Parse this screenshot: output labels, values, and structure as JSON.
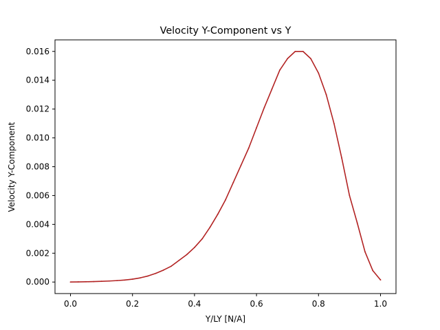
{
  "chart_data": {
    "type": "line",
    "title": "Velocity Y-Component vs Y",
    "xlabel": "Y/LY [N/A]",
    "ylabel": "Velocity Y-Component",
    "xlim": [
      -0.05,
      1.05
    ],
    "ylim": [
      -0.0008,
      0.0168
    ],
    "xticks": [
      0.0,
      0.2,
      0.4,
      0.6,
      0.8,
      1.0
    ],
    "xtick_labels": [
      "0.0",
      "0.2",
      "0.4",
      "0.6",
      "0.8",
      "1.0"
    ],
    "yticks": [
      0.0,
      0.002,
      0.004,
      0.006,
      0.008,
      0.01,
      0.012,
      0.014,
      0.016
    ],
    "ytick_labels": [
      "0.000",
      "0.002",
      "0.004",
      "0.006",
      "0.008",
      "0.010",
      "0.012",
      "0.014",
      "0.016"
    ],
    "grid": false,
    "legend": false,
    "line_color": "#b22222",
    "series": [
      {
        "x": [
          0.0,
          0.025,
          0.05,
          0.075,
          0.1,
          0.125,
          0.15,
          0.175,
          0.2,
          0.225,
          0.25,
          0.275,
          0.3,
          0.325,
          0.35,
          0.375,
          0.4,
          0.425,
          0.45,
          0.475,
          0.5,
          0.525,
          0.55,
          0.575,
          0.6,
          0.625,
          0.65,
          0.675,
          0.7,
          0.725,
          0.75,
          0.775,
          0.8,
          0.825,
          0.85,
          0.875,
          0.9,
          0.925,
          0.95,
          0.975,
          1.0
        ],
        "values": [
          0.0,
          1e-05,
          2e-05,
          3e-05,
          5e-05,
          7e-05,
          0.0001,
          0.00014,
          0.0002,
          0.00029,
          0.00042,
          0.0006,
          0.00083,
          0.0011,
          0.0015,
          0.0019,
          0.0024,
          0.003,
          0.0038,
          0.0047,
          0.0057,
          0.0069,
          0.0081,
          0.0093,
          0.0107,
          0.0121,
          0.0134,
          0.0147,
          0.0155,
          0.016,
          0.016,
          0.0155,
          0.0145,
          0.013,
          0.011,
          0.0086,
          0.006,
          0.0041,
          0.0021,
          0.0008,
          0.00015
        ]
      }
    ]
  }
}
